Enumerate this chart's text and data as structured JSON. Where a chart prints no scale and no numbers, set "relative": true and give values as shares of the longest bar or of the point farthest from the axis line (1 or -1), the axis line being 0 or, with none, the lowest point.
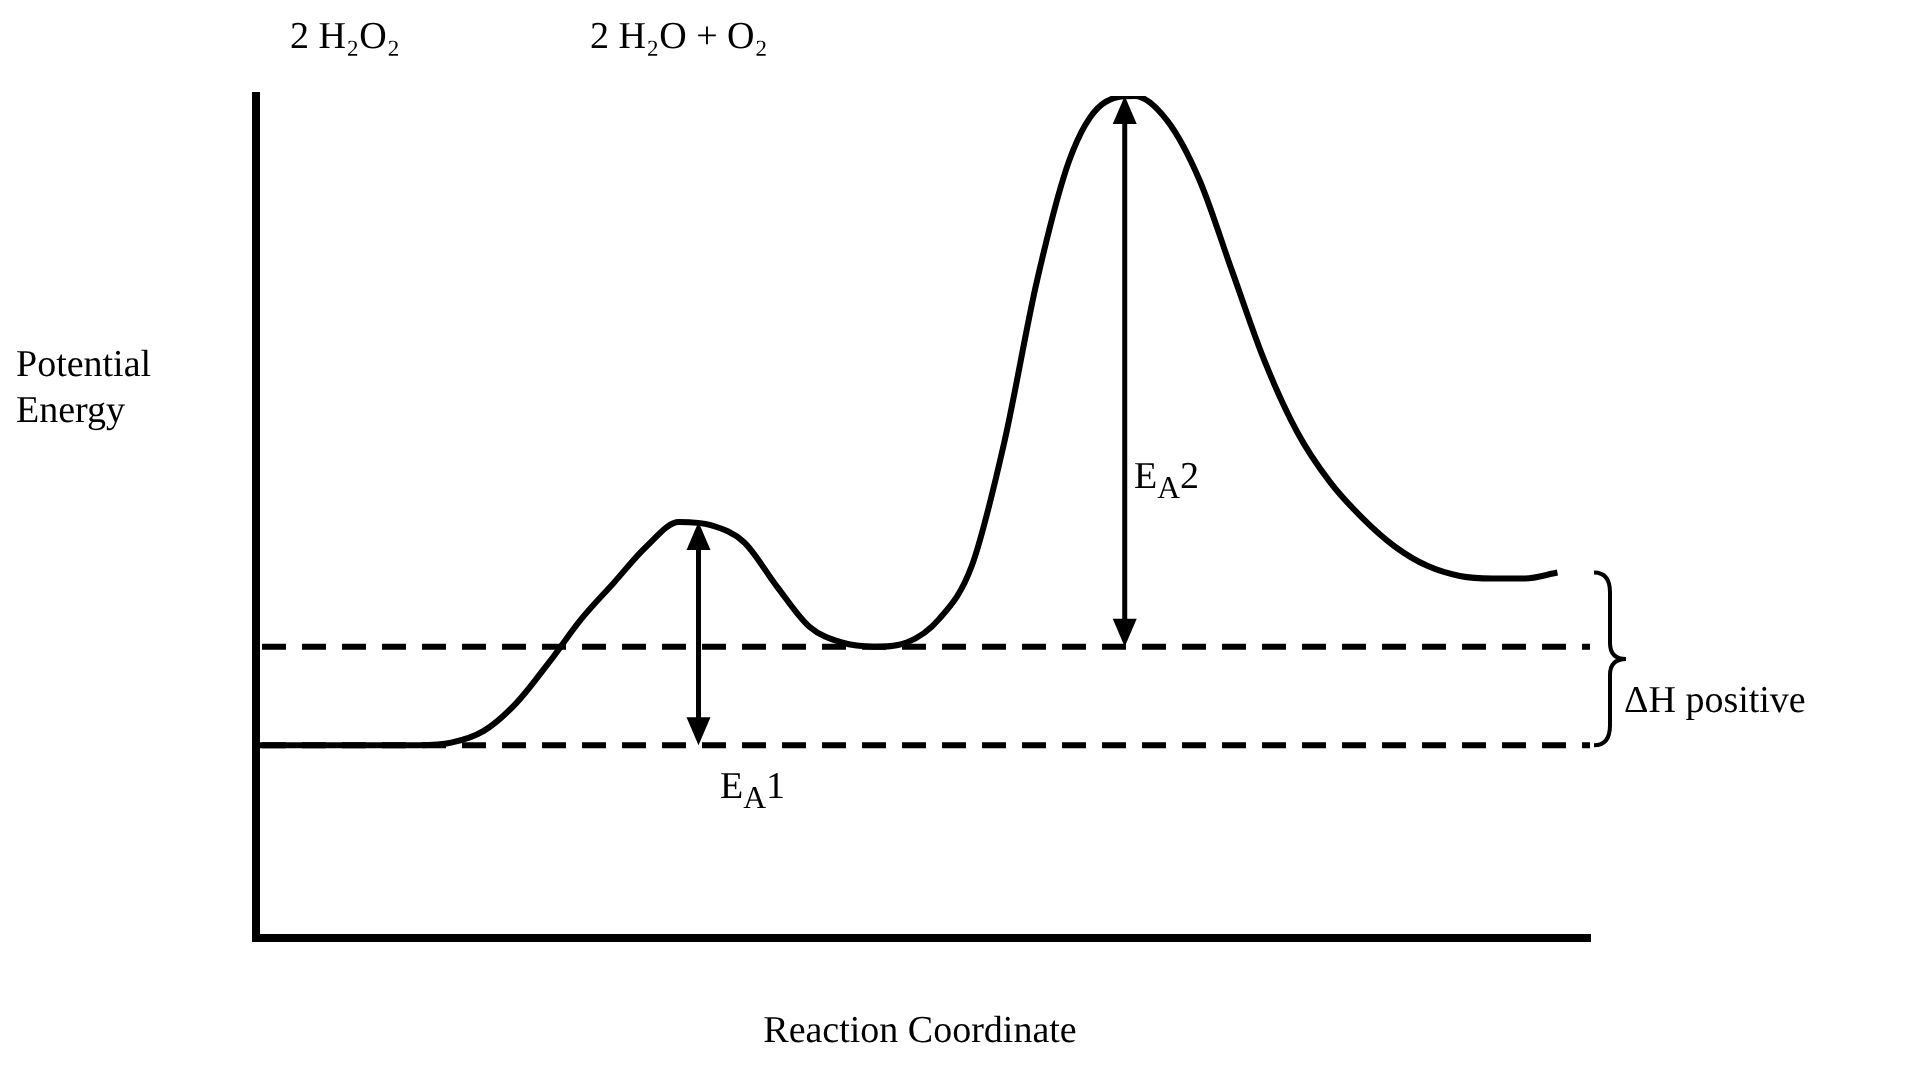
{
  "chart_data": {
    "type": "line",
    "relative": true,
    "xlabel": "Reaction Coordinate",
    "ylabel": "Potential Energy",
    "tick_labels": false,
    "grid": false,
    "legend": false,
    "marker": "none",
    "line_style": "solid",
    "categories": [
      null,
      null,
      null,
      null,
      null,
      null,
      null,
      null,
      null,
      null,
      null,
      null,
      null,
      null,
      null,
      null,
      null,
      null,
      null,
      null,
      null,
      null,
      null,
      null,
      null,
      null,
      null,
      null,
      null,
      null,
      null,
      null,
      null,
      null,
      null,
      null,
      null,
      null,
      null,
      null,
      null,
      null
    ],
    "series": [
      {
        "color": "#000000",
        "values": [
          0.229,
          0.229,
          0.229,
          0.229,
          0.229,
          0.229,
          0.232,
          0.246,
          0.279,
          0.327,
          0.379,
          0.422,
          0.465,
          0.494,
          0.49,
          0.47,
          0.418,
          0.37,
          0.351,
          0.346,
          0.351,
          0.379,
          0.442,
          0.589,
          0.78,
          0.924,
          0.99,
          1,
          0.971,
          0.9,
          0.792,
          0.685,
          0.601,
          0.542,
          0.499,
          0.465,
          0.442,
          0.43,
          0.427,
          0.427,
          0.434,
          null
        ]
      }
    ],
    "ref_lines": [
      {
        "axis": "y",
        "value": 0.229,
        "color": "#000000",
        "line_style": "dashed"
      },
      {
        "axis": "y",
        "value": 0.346,
        "color": "#000000",
        "line_style": "dashed"
      }
    ],
    "annotations": [
      "2 H₂O₂",
      "2 H₂O + O₂",
      "E$_{A}$1",
      "E$_{A}$2",
      "ΔH positive"
    ]
  }
}
